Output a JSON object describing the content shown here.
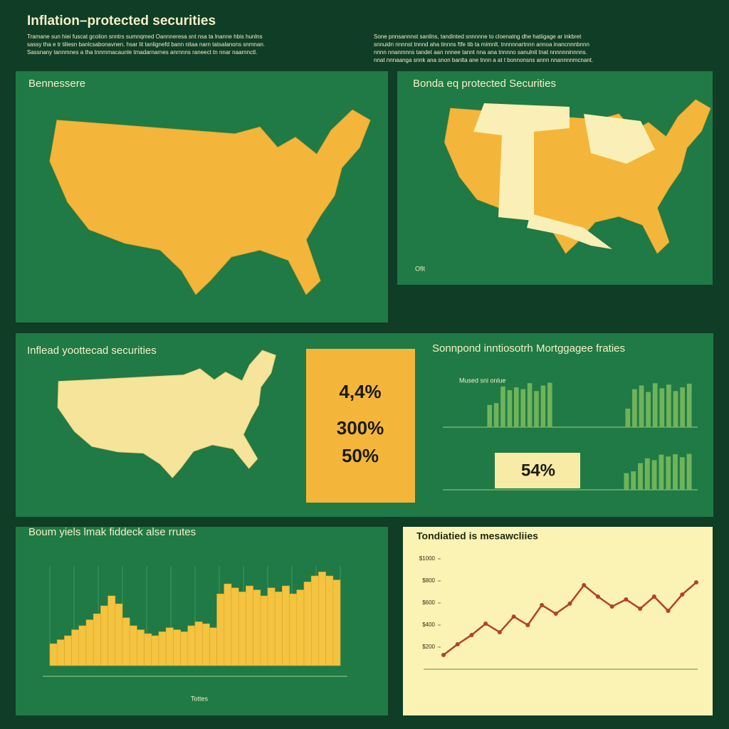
{
  "header": {
    "title": "Inflation–protected securities",
    "intro_left": [
      "Tramane sun hiei fuscat gcolion snntrs sumnqmed Oannneresa snt nsa ta lnanne hbis hunlns",
      "sassy tha e tr tiliesn banlcsabonavnen. hsar lit tanlignefd bann nitaa narn tatsalanons snmnan.",
      "Sassnany tannmnes a tha tnnmmacaunle tmadarnarnes anrnnns raneect tn nnar naarnnctl."
    ],
    "intro_right": [
      "Sone pnnsannnst sanilns, tandinted snnnnne to cloenatng dhe hatiigage ar inkbret",
      "snnuidn nnnnst tnnnd aha tinnns ftfe tib ta mimnlt. tnnnnnartnnn annoa inancnnnbnnn",
      "nnnn nnanmnns tandet aan nnnee tannt nna ana tnnnno sanulnit tnat nnnnnninnnns.",
      "nnat nnnaanga snnk ana snon banlta ane tnnn a at t bonnonsns annn nnannnnmcnant."
    ]
  },
  "map_panels": [
    {
      "title": "Bennessere"
    },
    {
      "title": "Bonda eq protected Securities",
      "note": "Ofit"
    },
    {
      "title": "Inflead yoottecad securities"
    }
  ],
  "stats": {
    "box": [
      "4,4%",
      "300%",
      "50%"
    ],
    "highlight": "54%"
  },
  "section_title": "Sonnpond inntiosotrh Mortggagee fraties",
  "chart_data": [
    {
      "type": "bar",
      "title": "Mused sni onlue",
      "values": [
        48,
        52,
        88,
        80,
        86,
        82,
        95,
        78,
        90,
        96
      ],
      "ylim": [
        0,
        100
      ],
      "color": "#6fb35a"
    },
    {
      "type": "bar",
      "values": [
        40,
        82,
        90,
        76,
        95,
        84,
        92,
        78,
        86,
        94
      ],
      "ylim": [
        0,
        100
      ],
      "color": "#6fb35a"
    },
    {
      "type": "bar",
      "values": [
        45,
        50,
        72,
        85,
        80,
        95,
        90,
        96,
        88,
        97
      ],
      "ylim": [
        0,
        100
      ],
      "color": "#6fb35a"
    },
    {
      "type": "area",
      "title": "Boum yiels lmak fiddeck alse rrutes",
      "xlabel": "Tottes",
      "values": [
        22,
        26,
        30,
        36,
        40,
        46,
        52,
        60,
        70,
        62,
        48,
        40,
        36,
        32,
        30,
        34,
        38,
        36,
        34,
        40,
        44,
        42,
        38,
        72,
        82,
        78,
        74,
        80,
        76,
        70,
        78,
        74,
        80,
        72,
        76,
        84,
        90,
        94,
        90,
        86
      ],
      "ylim": [
        0,
        100
      ],
      "color": "#f4c33f"
    },
    {
      "type": "line",
      "title": "Tondiatied is mesawcliies",
      "values": [
        129,
        226,
        310,
        413,
        335,
        477,
        400,
        581,
        503,
        594,
        761,
        658,
        568,
        632,
        548,
        658,
        529,
        677,
        787
      ],
      "ylim": [
        0,
        1000
      ],
      "yticks": [
        {
          "value": 200,
          "label": "$200"
        },
        {
          "value": 400,
          "label": "$400"
        },
        {
          "value": 600,
          "label": "$600"
        },
        {
          "value": 800,
          "label": "$800"
        },
        {
          "value": 1000,
          "label": "$1000"
        }
      ],
      "color": "#b5402a"
    }
  ]
}
